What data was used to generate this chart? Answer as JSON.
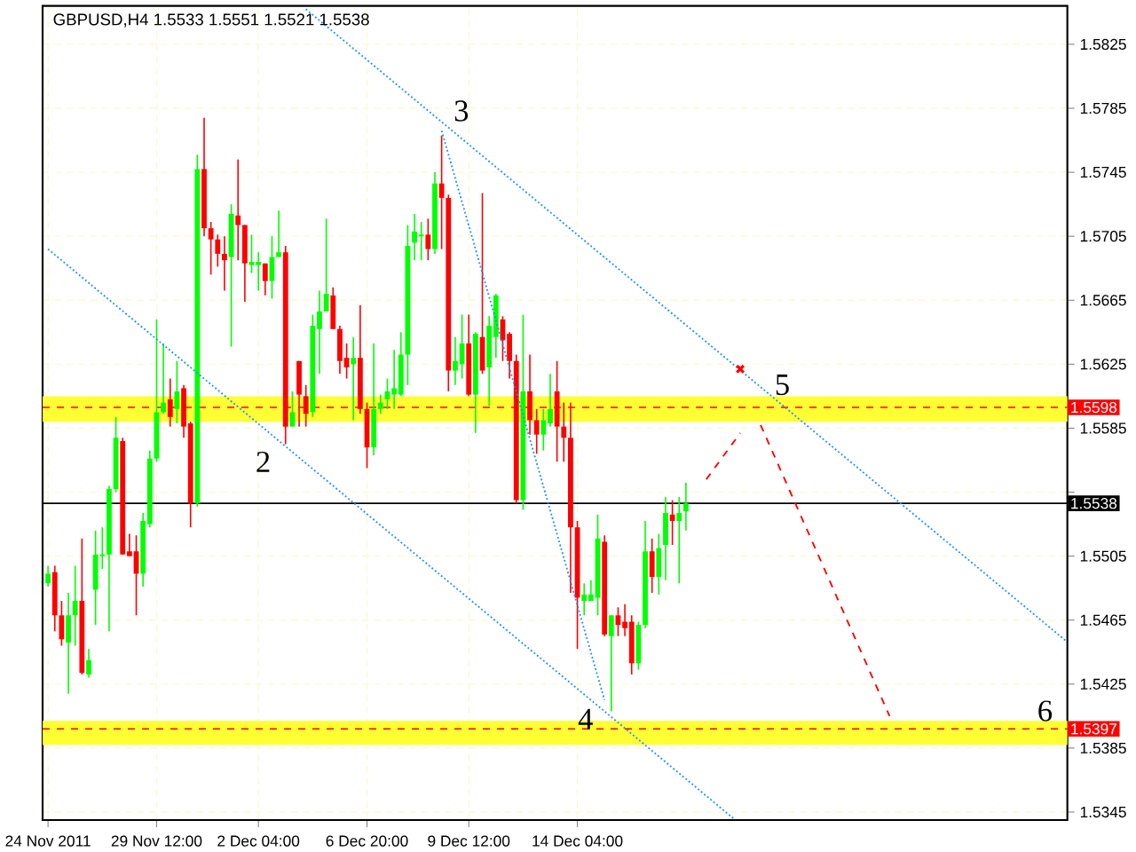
{
  "chart_data": {
    "type": "candlestick",
    "title": "GBPUSD,H4 1.5533 1.5551 1.5521 1.5538",
    "categories": [
      "24 Nov 2011",
      null,
      null,
      null,
      null,
      null,
      null,
      null,
      null,
      null,
      null,
      null,
      null,
      null,
      null,
      null,
      "29 Nov 12:00",
      null,
      null,
      null,
      null,
      null,
      null,
      null,
      null,
      null,
      null,
      null,
      null,
      null,
      null,
      "2 Dec 04:00",
      null,
      null,
      null,
      null,
      null,
      null,
      null,
      null,
      null,
      null,
      null,
      null,
      null,
      null,
      null,
      "6 Dec 20:00",
      null,
      null,
      null,
      null,
      null,
      null,
      null,
      null,
      null,
      null,
      null,
      null,
      null,
      null,
      "9 Dec 12:00",
      null,
      null,
      null,
      null,
      null,
      null,
      null,
      null,
      null,
      null,
      null,
      null,
      null,
      null,
      null,
      "14 Dec 04:00",
      null,
      null,
      null,
      null,
      null,
      null,
      null,
      null,
      null,
      null,
      null,
      null,
      null,
      null,
      null,
      null,
      null,
      null,
      null,
      null,
      null,
      null,
      null,
      null,
      null,
      null,
      null,
      null,
      null,
      null,
      null,
      null,
      null,
      null,
      null,
      null,
      null,
      null,
      null,
      null,
      null,
      null,
      null,
      null,
      null,
      null,
      null,
      null,
      null,
      null,
      null,
      null,
      null,
      null,
      null,
      null,
      null,
      null,
      null,
      null,
      null,
      null,
      null,
      null,
      null,
      null,
      null,
      null,
      null,
      null,
      null,
      null
    ],
    "ohlc": [
      [
        1.5488,
        1.5499,
        1.5486,
        1.5494
      ],
      [
        1.5495,
        1.5499,
        1.5458,
        1.5468
      ],
      [
        1.5468,
        1.5477,
        1.5449,
        1.5453
      ],
      [
        1.5451,
        1.5482,
        1.5419,
        1.5468
      ],
      [
        1.5468,
        1.5499,
        1.5449,
        1.5477
      ],
      [
        1.5477,
        1.5516,
        1.5431,
        1.5432
      ],
      [
        1.5431,
        1.5447,
        1.5429,
        1.544
      ],
      [
        1.5484,
        1.5521,
        1.5462,
        1.5506
      ],
      [
        1.5505,
        1.5523,
        1.5497,
        1.5506
      ],
      [
        1.5506,
        1.5549,
        1.5458,
        1.5547
      ],
      [
        1.5547,
        1.5592,
        1.5545,
        1.5579
      ],
      [
        1.5577,
        1.5579,
        1.5506,
        1.5506
      ],
      [
        1.5508,
        1.5519,
        1.5505,
        1.5505
      ],
      [
        1.5508,
        1.5518,
        1.5468,
        1.5494
      ],
      [
        1.5494,
        1.5532,
        1.5486,
        1.5527
      ],
      [
        1.5525,
        1.5571,
        1.5523,
        1.5566
      ],
      [
        1.5566,
        1.5653,
        1.5564,
        1.5595
      ],
      [
        1.5595,
        1.5638,
        1.5594,
        1.5601
      ],
      [
        1.5603,
        1.5616,
        1.5586,
        1.5592
      ],
      [
        1.5597,
        1.5627,
        1.5588,
        1.5608
      ],
      [
        1.561,
        1.5612,
        1.5579,
        1.5586
      ],
      [
        1.5588,
        1.5589,
        1.5523,
        1.5538
      ],
      [
        1.5538,
        1.5756,
        1.5536,
        1.5747
      ],
      [
        1.5747,
        1.5779,
        1.5705,
        1.571
      ],
      [
        1.571,
        1.5714,
        1.5681,
        1.5703
      ],
      [
        1.5703,
        1.5706,
        1.5686,
        1.5694
      ],
      [
        1.5694,
        1.5705,
        1.5671,
        1.569
      ],
      [
        1.5692,
        1.5725,
        1.5636,
        1.5719
      ],
      [
        1.5718,
        1.5753,
        1.569,
        1.5712
      ],
      [
        1.5712,
        1.5712,
        1.5664,
        1.5688
      ],
      [
        1.5687,
        1.5706,
        1.5682,
        1.5689
      ],
      [
        1.5687,
        1.5695,
        1.5671,
        1.5689
      ],
      [
        1.5688,
        1.5688,
        1.5668,
        1.5677
      ],
      [
        1.5677,
        1.5705,
        1.5666,
        1.5692
      ],
      [
        1.5692,
        1.5721,
        1.5692,
        1.5695
      ],
      [
        1.5695,
        1.5699,
        1.5575,
        1.5586
      ],
      [
        1.5586,
        1.5608,
        1.5586,
        1.5595
      ],
      [
        1.5627,
        1.5627,
        1.5586,
        1.5606
      ],
      [
        1.5605,
        1.5612,
        1.5586,
        1.5594
      ],
      [
        1.5595,
        1.5656,
        1.5592,
        1.5649
      ],
      [
        1.5647,
        1.5671,
        1.5619,
        1.5658
      ],
      [
        1.5658,
        1.5716,
        1.5658,
        1.5669
      ],
      [
        1.5668,
        1.5673,
        1.5647,
        1.5647
      ],
      [
        1.5647,
        1.5649,
        1.5619,
        1.5627
      ],
      [
        1.5629,
        1.5638,
        1.5616,
        1.5623
      ],
      [
        1.5625,
        1.5642,
        1.559,
        1.5629
      ],
      [
        1.5629,
        1.5662,
        1.5594,
        1.5597
      ],
      [
        1.5597,
        1.5601,
        1.556,
        1.5573
      ],
      [
        1.5573,
        1.5638,
        1.5568,
        1.5597
      ],
      [
        1.5597,
        1.5606,
        1.5594,
        1.5601
      ],
      [
        1.5603,
        1.5616,
        1.5597,
        1.5608
      ],
      [
        1.5606,
        1.5634,
        1.5597,
        1.561
      ],
      [
        1.5606,
        1.5645,
        1.5605,
        1.5631
      ],
      [
        1.5631,
        1.5712,
        1.5612,
        1.5699
      ],
      [
        1.5701,
        1.5719,
        1.569,
        1.5708
      ],
      [
        1.5705,
        1.5714,
        1.569,
        1.5706
      ],
      [
        1.5706,
        1.5716,
        1.569,
        1.5697
      ],
      [
        1.5697,
        1.5745,
        1.5694,
        1.5738
      ],
      [
        1.5738,
        1.5768,
        1.5697,
        1.5729
      ],
      [
        1.5729,
        1.5731,
        1.5608,
        1.5621
      ],
      [
        1.5621,
        1.5642,
        1.5612,
        1.5627
      ],
      [
        1.5625,
        1.5656,
        1.5616,
        1.5638
      ],
      [
        1.5638,
        1.5656,
        1.5605,
        1.5606
      ],
      [
        1.5606,
        1.5645,
        1.5582,
        1.5644
      ],
      [
        1.5642,
        1.5732,
        1.5619,
        1.5621
      ],
      [
        1.5623,
        1.5655,
        1.5599,
        1.5649
      ],
      [
        1.5642,
        1.5669,
        1.5629,
        1.5668
      ],
      [
        1.5653,
        1.5655,
        1.5627,
        1.564
      ],
      [
        1.5644,
        1.5645,
        1.5616,
        1.5627
      ],
      [
        1.5627,
        1.5631,
        1.5538,
        1.554
      ],
      [
        1.554,
        1.5656,
        1.5534,
        1.5608
      ],
      [
        1.5608,
        1.5631,
        1.5581,
        1.559
      ],
      [
        1.559,
        1.5597,
        1.5569,
        1.5581
      ],
      [
        1.5581,
        1.5597,
        1.5571,
        1.559
      ],
      [
        1.5588,
        1.5619,
        1.5586,
        1.5597
      ],
      [
        1.5608,
        1.5627,
        1.5564,
        1.5586
      ],
      [
        1.5586,
        1.5601,
        1.5564,
        1.5579
      ],
      [
        1.5579,
        1.5601,
        1.5482,
        1.5523
      ],
      [
        1.5523,
        1.5527,
        1.5447,
        1.5479
      ],
      [
        1.5477,
        1.5488,
        1.5468,
        1.5481
      ],
      [
        1.5477,
        1.549,
        1.5477,
        1.5481
      ],
      [
        1.5479,
        1.5531,
        1.5468,
        1.5516
      ],
      [
        1.5514,
        1.5518,
        1.5455,
        1.5456
      ],
      [
        1.5455,
        1.5468,
        1.5408,
        1.5468
      ],
      [
        1.5468,
        1.5473,
        1.5455,
        1.5462
      ],
      [
        1.5464,
        1.5475,
        1.5455,
        1.546
      ],
      [
        1.5464,
        1.5468,
        1.5431,
        1.5438
      ],
      [
        1.5438,
        1.5464,
        1.5434,
        1.5462
      ],
      [
        1.5462,
        1.5527,
        1.546,
        1.5508
      ],
      [
        1.5508,
        1.5516,
        1.5482,
        1.5492
      ],
      [
        1.5492,
        1.5519,
        1.5481,
        1.551
      ],
      [
        1.5512,
        1.5542,
        1.549,
        1.5532
      ],
      [
        1.5531,
        1.554,
        1.5512,
        1.5527
      ],
      [
        1.5527,
        1.5542,
        1.5488,
        1.5532
      ],
      [
        1.5533,
        1.5551,
        1.5521,
        1.5538
      ],
      null,
      null,
      null,
      null,
      null,
      null,
      null,
      null,
      null,
      null,
      null,
      null,
      null,
      null,
      null,
      null,
      null,
      null,
      null,
      null,
      null,
      null,
      null,
      null,
      null,
      null,
      null,
      null,
      null,
      null,
      null,
      null,
      null,
      null,
      null,
      null,
      null,
      null,
      null,
      null,
      null,
      null,
      null,
      null,
      null,
      null,
      null,
      null,
      null,
      null,
      null,
      null,
      null,
      null,
      null,
      null
    ],
    "colors": [
      "#00ff00",
      "#ff0000",
      "#ff0000",
      "#00ff00",
      "#00ff00",
      "#ff0000",
      "#00ff00",
      "#00ff00",
      "#00ff00",
      "#00ff00",
      "#00ff00",
      "#ff0000",
      "#ff0000",
      "#ff0000",
      "#00ff00",
      "#00ff00",
      "#00ff00",
      "#00ff00",
      "#ff0000",
      "#00ff00",
      "#ff0000",
      "#ff0000",
      "#00ff00",
      "#ff0000",
      "#ff0000",
      "#ff0000",
      "#ff0000",
      "#00ff00",
      "#ff0000",
      "#ff0000",
      "#00ff00",
      "#00ff00",
      "#ff0000",
      "#00ff00",
      "#00ff00",
      "#ff0000",
      "#00ff00",
      "#ff0000",
      "#ff0000",
      "#00ff00",
      "#00ff00",
      "#00ff00",
      "#ff0000",
      "#ff0000",
      "#ff0000",
      "#00ff00",
      "#ff0000",
      "#ff0000",
      "#00ff00",
      "#00ff00",
      "#00ff00",
      "#00ff00",
      "#00ff00",
      "#00ff00",
      "#00ff00",
      "#00ff00",
      "#ff0000",
      "#00ff00",
      "#ff0000",
      "#ff0000",
      "#00ff00",
      "#00ff00",
      "#ff0000",
      "#00ff00",
      "#ff0000",
      "#00ff00",
      "#00ff00",
      "#ff0000",
      "#ff0000",
      "#ff0000",
      "#00ff00",
      "#ff0000",
      "#ff0000",
      "#00ff00",
      "#00ff00",
      "#ff0000",
      "#ff0000",
      "#ff0000",
      "#ff0000",
      "#00ff00",
      "#00ff00",
      "#00ff00",
      "#ff0000",
      "#00ff00",
      "#ff0000",
      "#ff0000",
      "#ff0000",
      "#00ff00",
      "#00ff00",
      "#ff0000",
      "#00ff00",
      "#00ff00",
      "#ff0000",
      "#00ff00",
      "#00ff00",
      null,
      null,
      null,
      null,
      null,
      null,
      null,
      null,
      null,
      null,
      null,
      null,
      null,
      null,
      null,
      null,
      null,
      null,
      null,
      null,
      null,
      null,
      null,
      null,
      null,
      null,
      null,
      null,
      null,
      null,
      null,
      null,
      null,
      null,
      null,
      null,
      null,
      null,
      null,
      null,
      null,
      null,
      null,
      null,
      null,
      null,
      null,
      null,
      null,
      null,
      null,
      null,
      null,
      null,
      null,
      null
    ],
    "series": [
      {
        "type": "line",
        "color": "#1e90ff",
        "line_style": "dotted",
        "values": [
          null,
          null,
          null,
          null,
          null,
          null,
          null,
          null,
          null,
          null,
          null,
          null,
          null,
          null,
          null,
          null,
          null,
          null,
          null,
          null,
          null,
          null,
          null,
          null,
          null,
          null,
          null,
          null,
          null,
          null,
          null,
          null,
          null,
          null,
          null,
          null,
          null,
          null,
          1.5847,
          null,
          null,
          null,
          null,
          null,
          null,
          null,
          null,
          null,
          null,
          null,
          null,
          null,
          null,
          null,
          null,
          null,
          null,
          null,
          null,
          null,
          null,
          null,
          null,
          null,
          null,
          null,
          null,
          null,
          null,
          null,
          null,
          null,
          null,
          null,
          null,
          null,
          null,
          null,
          null,
          null,
          null,
          null,
          null,
          null,
          null,
          null,
          null,
          null,
          null,
          null,
          null,
          null,
          null,
          null,
          null,
          null,
          null,
          null,
          null,
          null,
          null,
          null,
          null,
          null,
          null,
          null,
          null,
          null,
          null,
          null,
          null,
          null,
          null,
          null,
          null,
          null,
          null,
          null,
          null,
          null,
          null,
          null,
          null,
          null,
          null,
          null,
          null,
          null,
          null,
          null,
          null,
          null,
          null,
          null,
          null,
          null,
          null,
          null,
          null,
          null,
          null,
          null,
          null,
          null,
          null,
          null,
          null,
          null,
          null,
          null,
          1.5452
        ]
      },
      {
        "type": "line",
        "color": "#1e90ff",
        "line_style": "dotted",
        "values": [
          1.5697,
          null,
          null,
          null,
          null,
          null,
          null,
          null,
          null,
          null,
          null,
          null,
          null,
          null,
          null,
          null,
          null,
          null,
          null,
          null,
          null,
          null,
          null,
          null,
          null,
          null,
          null,
          null,
          null,
          null,
          null,
          null,
          null,
          null,
          null,
          null,
          null,
          null,
          null,
          null,
          null,
          null,
          null,
          null,
          null,
          null,
          null,
          null,
          null,
          null,
          null,
          null,
          null,
          null,
          null,
          null,
          null,
          null,
          null,
          null,
          null,
          null,
          null,
          null,
          null,
          null,
          null,
          null,
          null,
          null,
          null,
          null,
          null,
          null,
          null,
          null,
          null,
          null,
          null,
          null,
          null,
          null,
          null,
          null,
          null,
          null,
          null,
          null,
          null,
          null,
          null,
          null,
          null,
          null,
          null,
          null,
          null,
          null,
          null,
          null,
          null,
          1.5341,
          null,
          null,
          null,
          null,
          null,
          null,
          null,
          null,
          null,
          null,
          null,
          null,
          null,
          null,
          null,
          null,
          null,
          null,
          null,
          null,
          null,
          null,
          null,
          null,
          null,
          null,
          null,
          null,
          null,
          null,
          null,
          null,
          null,
          null,
          null,
          null,
          null,
          null,
          null,
          null,
          null,
          null,
          null,
          null,
          null,
          null,
          null,
          null,
          null
        ]
      },
      {
        "type": "line",
        "color": "#1e90ff",
        "line_style": "dotted",
        "values": [
          null,
          null,
          null,
          null,
          null,
          null,
          null,
          null,
          null,
          null,
          null,
          null,
          null,
          null,
          null,
          null,
          null,
          null,
          null,
          null,
          null,
          null,
          null,
          null,
          null,
          null,
          null,
          null,
          null,
          null,
          null,
          null,
          null,
          null,
          null,
          null,
          null,
          null,
          null,
          null,
          null,
          null,
          null,
          null,
          null,
          null,
          null,
          null,
          null,
          null,
          null,
          null,
          null,
          null,
          null,
          null,
          null,
          null,
          1.5771,
          null,
          null,
          null,
          null,
          null,
          null,
          null,
          null,
          null,
          null,
          null,
          null,
          null,
          null,
          null,
          null,
          null,
          null,
          null,
          null,
          null,
          null,
          null,
          1.5415,
          null,
          null,
          null,
          null,
          null,
          null,
          null,
          null,
          null,
          null,
          null,
          null,
          null,
          null,
          null,
          null,
          null,
          null,
          null,
          null,
          null,
          null,
          null,
          null,
          null,
          null,
          null,
          null,
          null,
          null,
          null,
          null,
          null,
          null,
          null,
          null,
          null,
          null,
          null,
          null,
          null,
          null,
          null,
          null,
          null,
          null,
          null,
          null,
          null,
          null,
          null,
          null,
          null,
          null,
          null,
          null,
          null,
          null,
          null,
          null,
          null,
          null,
          null,
          null,
          null,
          null,
          null,
          null
        ]
      },
      {
        "type": "line",
        "color": "#ff0000",
        "line_style": "dashed",
        "values": [
          null,
          null,
          null,
          null,
          null,
          null,
          null,
          null,
          null,
          null,
          null,
          null,
          null,
          null,
          null,
          null,
          null,
          null,
          null,
          null,
          null,
          null,
          null,
          null,
          null,
          null,
          null,
          null,
          null,
          null,
          null,
          null,
          null,
          null,
          null,
          null,
          null,
          null,
          null,
          null,
          null,
          null,
          null,
          null,
          null,
          null,
          null,
          null,
          null,
          null,
          null,
          null,
          null,
          null,
          null,
          null,
          null,
          null,
          null,
          null,
          null,
          null,
          null,
          null,
          null,
          null,
          null,
          null,
          null,
          null,
          null,
          null,
          null,
          null,
          null,
          null,
          null,
          null,
          null,
          null,
          null,
          null,
          null,
          null,
          null,
          null,
          null,
          null,
          null,
          null,
          null,
          null,
          null,
          null,
          null,
          null,
          null,
          1.5553,
          null,
          null,
          null,
          null,
          1.5582,
          null,
          null,
          null,
          null,
          null,
          null,
          null,
          null,
          null,
          null,
          null,
          null,
          null,
          null,
          null,
          null,
          null,
          null,
          null,
          null,
          null,
          null,
          null,
          null,
          null,
          null,
          null,
          null,
          null,
          null,
          null,
          null,
          null,
          null,
          null,
          null,
          null,
          null,
          null,
          null,
          null,
          null,
          null,
          null,
          null,
          null,
          null,
          null
        ]
      },
      {
        "type": "line",
        "color": "#ff0000",
        "line_style": "dashed",
        "values": [
          null,
          null,
          null,
          null,
          null,
          null,
          null,
          null,
          null,
          null,
          null,
          null,
          null,
          null,
          null,
          null,
          null,
          null,
          null,
          null,
          null,
          null,
          null,
          null,
          null,
          null,
          null,
          null,
          null,
          null,
          null,
          null,
          null,
          null,
          null,
          null,
          null,
          null,
          null,
          null,
          null,
          null,
          null,
          null,
          null,
          null,
          null,
          null,
          null,
          null,
          null,
          null,
          null,
          null,
          null,
          null,
          null,
          null,
          null,
          null,
          null,
          null,
          null,
          null,
          null,
          null,
          null,
          null,
          null,
          null,
          null,
          null,
          null,
          null,
          null,
          null,
          null,
          null,
          null,
          null,
          null,
          null,
          null,
          null,
          null,
          null,
          null,
          null,
          null,
          null,
          null,
          null,
          null,
          null,
          null,
          null,
          null,
          null,
          null,
          null,
          null,
          null,
          null,
          null,
          null,
          1.5587,
          null,
          null,
          null,
          null,
          null,
          null,
          null,
          null,
          null,
          null,
          null,
          null,
          null,
          null,
          null,
          null,
          null,
          null,
          1.5405,
          null,
          null,
          null,
          null,
          null,
          null,
          null,
          null,
          null,
          null,
          null,
          null,
          null,
          null,
          null,
          null,
          null,
          null,
          null,
          null,
          null,
          null,
          null,
          null,
          null,
          null
        ]
      },
      {
        "type": "scatter",
        "color": "#ff0000",
        "marker": "cross",
        "values": [
          null,
          null,
          null,
          null,
          null,
          null,
          null,
          null,
          null,
          null,
          null,
          null,
          null,
          null,
          null,
          null,
          null,
          null,
          null,
          null,
          null,
          null,
          null,
          null,
          null,
          null,
          null,
          null,
          null,
          null,
          null,
          null,
          null,
          null,
          null,
          null,
          null,
          null,
          null,
          null,
          null,
          null,
          null,
          null,
          null,
          null,
          null,
          null,
          null,
          null,
          null,
          null,
          null,
          null,
          null,
          null,
          null,
          null,
          null,
          null,
          null,
          null,
          null,
          null,
          null,
          null,
          null,
          null,
          null,
          null,
          null,
          null,
          null,
          null,
          null,
          null,
          null,
          null,
          null,
          null,
          null,
          null,
          null,
          null,
          null,
          null,
          null,
          null,
          null,
          null,
          null,
          null,
          null,
          null,
          null,
          null,
          null,
          null,
          null,
          null,
          null,
          null,
          1.5622,
          null,
          null,
          null,
          null,
          null,
          null,
          null,
          null,
          null,
          null,
          null,
          null,
          null,
          null,
          null,
          null,
          null,
          null,
          null,
          null,
          null,
          null,
          null,
          null,
          null,
          null,
          null,
          null,
          null,
          null,
          null,
          null,
          null,
          null,
          null,
          null,
          null,
          null,
          null,
          null,
          null,
          null,
          null,
          null,
          null,
          null,
          null,
          null
        ]
      }
    ],
    "ylim": [
      1.534,
      1.5849
    ],
    "yticks": [
      1.5825,
      1.5785,
      1.5745,
      1.5705,
      1.5665,
      1.5625,
      1.5585,
      {
        "value": 1.5545,
        "label": null
      },
      1.5505,
      1.5465,
      1.5425,
      1.5385,
      1.5345
    ],
    "ref_lines": [
      {
        "axis": "y",
        "value": 1.5598,
        "label": "1.5598",
        "color": "#ff0000",
        "line_style": "dashed"
      },
      {
        "axis": "y",
        "value": 1.5397,
        "label": "1.5397",
        "color": "#ff0000",
        "line_style": "dashed"
      },
      {
        "axis": "y",
        "value": 1.5538,
        "label": "1.5538",
        "color": "#000000",
        "line_style": "solid"
      }
    ],
    "bands": [
      {
        "axis": "y",
        "from": 1.5589,
        "to": 1.5605,
        "color": "#ffff33"
      },
      {
        "axis": "y",
        "from": 1.5387,
        "to": 1.5402,
        "color": "#ffff33"
      }
    ],
    "annotations": [
      "2",
      "3",
      "4",
      {
        "text": "5",
        "y": 1.5598
      },
      {
        "text": "6",
        "y": 1.5397
      }
    ],
    "grid": true
  }
}
